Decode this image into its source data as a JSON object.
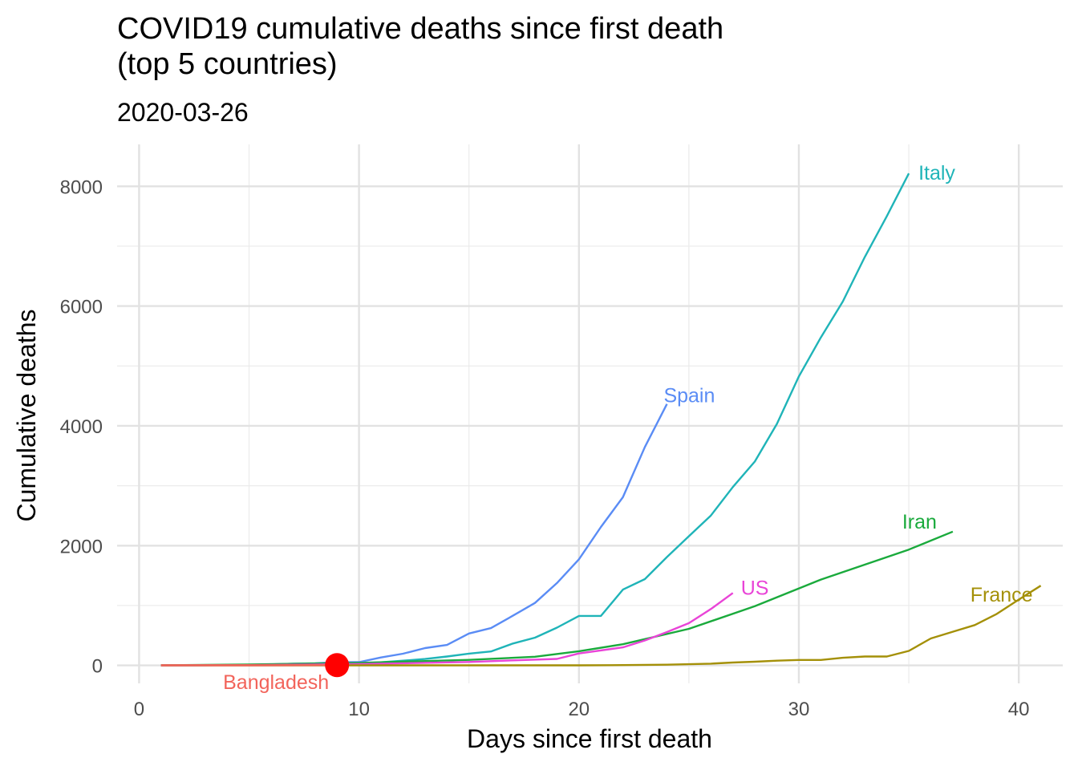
{
  "chart_data": {
    "type": "line",
    "title": "COVID19 cumulative deaths since first death\n(top 5 countries)",
    "subtitle": "2020-03-26",
    "xlabel": "Days since first death",
    "ylabel": "Cumulative deaths",
    "xlim": [
      -1,
      42
    ],
    "ylim": [
      -300,
      8700
    ],
    "x_ticks": [
      0,
      10,
      20,
      30,
      40
    ],
    "y_ticks": [
      0,
      2000,
      4000,
      6000,
      8000
    ],
    "grid": true,
    "legend": "none (direct labels)",
    "series": [
      {
        "name": "Italy",
        "color": "#1FB4B8",
        "x": [
          1,
          2,
          3,
          4,
          5,
          6,
          7,
          8,
          9,
          10,
          11,
          12,
          13,
          14,
          15,
          16,
          17,
          18,
          19,
          20,
          21,
          22,
          23,
          24,
          25,
          26,
          27,
          28,
          29,
          30,
          31,
          32,
          33,
          34,
          35
        ],
        "y": [
          1,
          2,
          3,
          7,
          10,
          12,
          17,
          21,
          29,
          34,
          52,
          79,
          107,
          148,
          197,
          233,
          366,
          463,
          631,
          827,
          827,
          1266,
          1441,
          1809,
          2158,
          2503,
          2978,
          3405,
          4032,
          4825,
          5476,
          6077,
          6820,
          7503,
          8215
        ]
      },
      {
        "name": "Spain",
        "color": "#5A8CF5",
        "x": [
          1,
          2,
          3,
          4,
          5,
          6,
          7,
          8,
          9,
          10,
          11,
          12,
          13,
          14,
          15,
          16,
          17,
          18,
          19,
          20,
          21,
          22,
          23,
          24
        ],
        "y": [
          1,
          2,
          3,
          5,
          10,
          17,
          28,
          35,
          54,
          55,
          133,
          195,
          289,
          342,
          533,
          623,
          830,
          1043,
          1375,
          1772,
          2311,
          2808,
          3647,
          4365
        ]
      },
      {
        "name": "Iran",
        "color": "#1AAA3C",
        "x": [
          1,
          5,
          10,
          15,
          18,
          20,
          22,
          25,
          28,
          31,
          35,
          37
        ],
        "y": [
          2,
          16,
          43,
          92,
          145,
          237,
          354,
          611,
          988,
          1433,
          1934,
          2234
        ]
      },
      {
        "name": "US",
        "color": "#E944D7",
        "x": [
          1,
          5,
          10,
          15,
          17,
          19,
          20,
          22,
          23,
          24,
          25,
          26,
          27
        ],
        "y": [
          1,
          6,
          22,
          57,
          85,
          108,
          200,
          302,
          417,
          557,
          706,
          942,
          1209
        ]
      },
      {
        "name": "France",
        "color": "#A49008",
        "x": [
          1,
          10,
          20,
          22,
          24,
          26,
          27,
          28,
          29,
          30,
          31,
          32,
          33,
          34,
          35,
          36,
          37,
          38,
          39,
          40,
          41
        ],
        "y": [
          1,
          1,
          2,
          5,
          12,
          30,
          48,
          61,
          79,
          91,
          91,
          127,
          148,
          148,
          243,
          450,
          562,
          674,
          860,
          1100,
          1331
        ]
      },
      {
        "name": "Bangladesh",
        "color": "#F2645B",
        "x": [
          1,
          5,
          9
        ],
        "y": [
          1,
          2,
          5
        ]
      }
    ],
    "highlight_point": {
      "series": "Bangladesh",
      "x": 9,
      "y": 5,
      "color": "#FF0000"
    }
  }
}
